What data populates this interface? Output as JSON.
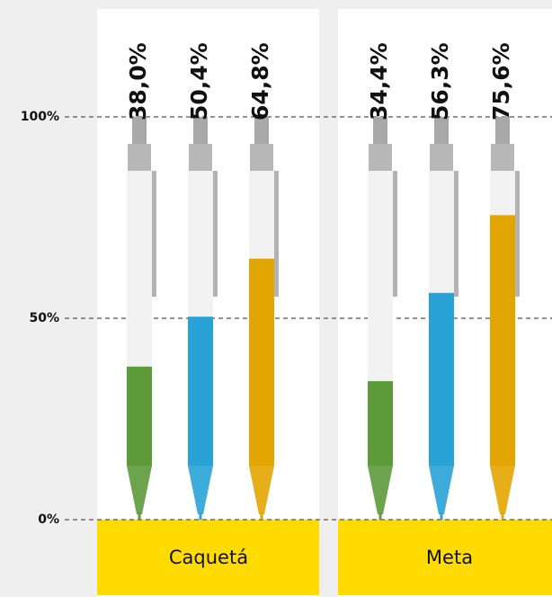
{
  "chart_data": {
    "type": "bar",
    "categories": [
      "Caquetá",
      "Meta"
    ],
    "series": [
      {
        "color": "#5c9a3a",
        "values": [
          38.0,
          34.4
        ],
        "value_labels": [
          "38,0%",
          "34,4%"
        ]
      },
      {
        "color": "#29a3d6",
        "values": [
          50.4,
          56.3
        ],
        "value_labels": [
          "50,4%",
          "56,3%"
        ]
      },
      {
        "color": "#e3a600",
        "values": [
          64.8,
          75.6
        ],
        "value_labels": [
          "64,8%",
          "75,6%"
        ]
      }
    ],
    "ylim": [
      0,
      100
    ],
    "yticks": [
      {
        "value": 0,
        "label": "0%"
      },
      {
        "value": 50,
        "label": "50%"
      },
      {
        "value": 100,
        "label": "100%"
      }
    ],
    "grid": true
  }
}
